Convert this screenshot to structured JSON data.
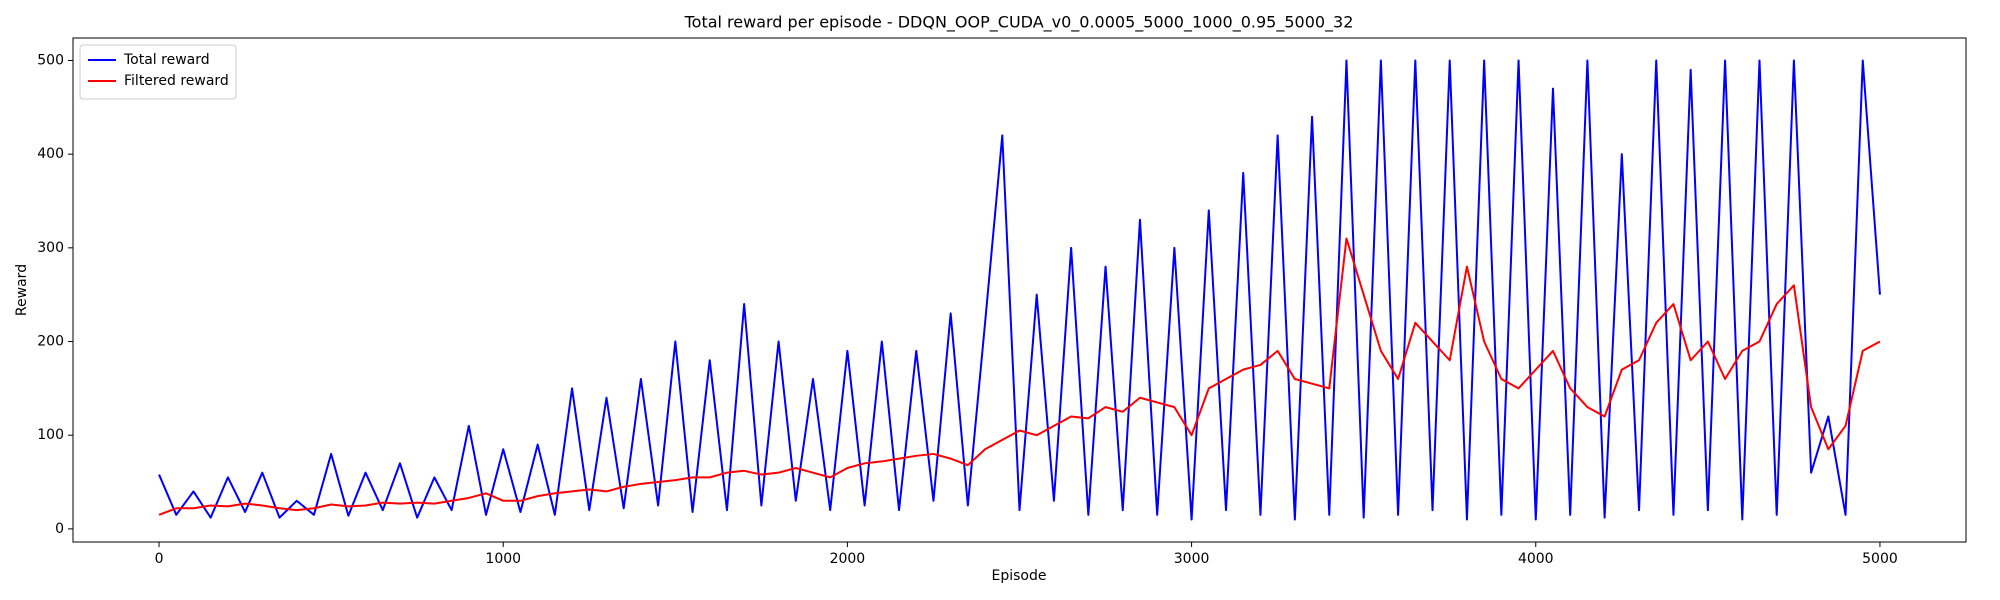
{
  "chart_data": {
    "type": "line",
    "title": "Total reward per episode - DDQN_OOP_CUDA_v0_0.0005_5000_1000_0.95_5000_32",
    "x_label": "Episode",
    "y_label": "Reward",
    "x": [
      0,
      50,
      100,
      150,
      200,
      250,
      300,
      350,
      400,
      450,
      500,
      550,
      600,
      650,
      700,
      750,
      800,
      850,
      900,
      950,
      1000,
      1050,
      1100,
      1150,
      1200,
      1250,
      1300,
      1350,
      1400,
      1450,
      1500,
      1550,
      1600,
      1650,
      1700,
      1750,
      1800,
      1850,
      1900,
      1950,
      2000,
      2050,
      2100,
      2150,
      2200,
      2250,
      2300,
      2350,
      2400,
      2450,
      2500,
      2550,
      2600,
      2650,
      2700,
      2750,
      2800,
      2850,
      2900,
      2950,
      3000,
      3050,
      3100,
      3150,
      3200,
      3250,
      3300,
      3350,
      3400,
      3450,
      3500,
      3550,
      3600,
      3650,
      3700,
      3750,
      3800,
      3850,
      3900,
      3950,
      4000,
      4050,
      4100,
      4150,
      4200,
      4250,
      4300,
      4350,
      4400,
      4450,
      4500,
      4550,
      4600,
      4650,
      4700,
      4750,
      4800,
      4850,
      4900,
      4950,
      5000
    ],
    "series": [
      {
        "name": "Total reward",
        "color": "#0000ff",
        "values": [
          58,
          15,
          40,
          12,
          55,
          18,
          60,
          12,
          30,
          15,
          80,
          14,
          60,
          20,
          70,
          12,
          55,
          20,
          110,
          15,
          85,
          18,
          90,
          15,
          150,
          20,
          140,
          22,
          160,
          25,
          200,
          18,
          180,
          20,
          240,
          25,
          200,
          30,
          160,
          20,
          190,
          25,
          200,
          20,
          190,
          30,
          230,
          25,
          220,
          420,
          20,
          250,
          30,
          300,
          15,
          280,
          20,
          330,
          15,
          300,
          10,
          340,
          20,
          380,
          15,
          420,
          10,
          440,
          15,
          500,
          12,
          500,
          15,
          500,
          20,
          500,
          10,
          500,
          15,
          500,
          10,
          470,
          15,
          500,
          12,
          400,
          20,
          500,
          15,
          490,
          20,
          500,
          10,
          500,
          15,
          500,
          60,
          120,
          15,
          500,
          250
        ]
      },
      {
        "name": "Filtered reward",
        "color": "#ff0000",
        "values": [
          15,
          22,
          22,
          25,
          24,
          27,
          25,
          22,
          20,
          22,
          26,
          24,
          25,
          28,
          27,
          28,
          27,
          30,
          33,
          38,
          30,
          30,
          35,
          38,
          40,
          42,
          40,
          45,
          48,
          50,
          52,
          55,
          55,
          60,
          62,
          58,
          60,
          65,
          60,
          55,
          65,
          70,
          72,
          75,
          78,
          80,
          75,
          68,
          85,
          95,
          105,
          100,
          110,
          120,
          118,
          130,
          125,
          140,
          135,
          130,
          100,
          150,
          160,
          170,
          175,
          190,
          160,
          155,
          150,
          310,
          250,
          190,
          160,
          220,
          200,
          180,
          280,
          200,
          160,
          150,
          170,
          190,
          150,
          130,
          120,
          170,
          180,
          220,
          240,
          180,
          200,
          160,
          190,
          200,
          240,
          260,
          130,
          85,
          110,
          190,
          200
        ]
      }
    ],
    "xlim": [
      -250,
      5250
    ],
    "ylim": [
      -14,
      524
    ],
    "xticks": [
      0,
      1000,
      2000,
      3000,
      4000,
      5000
    ],
    "yticks": [
      0,
      100,
      200,
      300,
      400,
      500
    ],
    "legend": "upper left",
    "grid": false
  }
}
